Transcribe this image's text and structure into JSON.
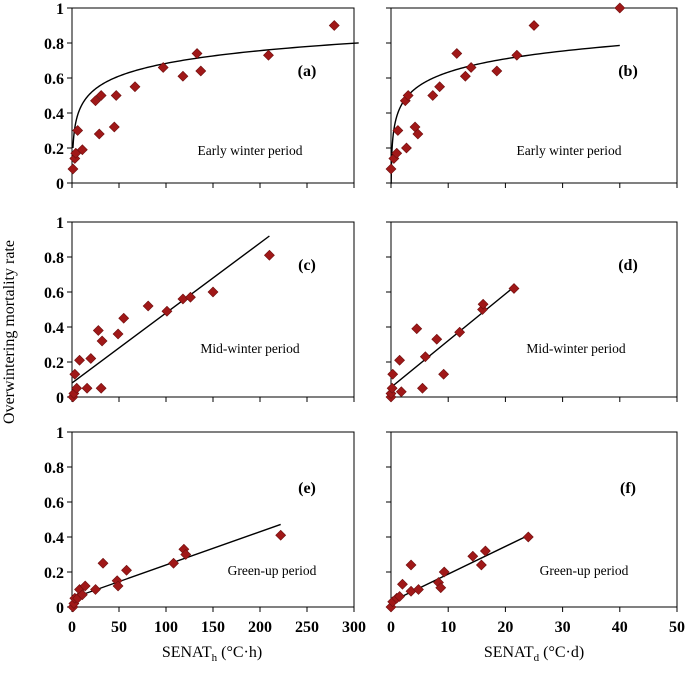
{
  "figure": {
    "ylabel": "Overwintering mortality rate",
    "xlabel_left": {
      "main": "SENAT",
      "sub": "h",
      "unit": " (°C·h)"
    },
    "xlabel_right": {
      "main": "SENAT",
      "sub": "d",
      "unit": " (°C·d)"
    },
    "marker_color": "#a01818",
    "line_color": "#000000"
  },
  "chart_data": [
    {
      "type": "scatter",
      "panel": "(a)",
      "period": "Early winter period",
      "xlim": [
        0,
        300
      ],
      "ylim": [
        0,
        1
      ],
      "xticks": [
        0,
        50,
        100,
        150,
        200,
        250,
        300
      ],
      "yticks": [
        0,
        0.2,
        0.4,
        0.6,
        0.8,
        1
      ],
      "ytick_labels": [
        "0",
        "0.2",
        "0.4",
        "0.6",
        "0.8",
        "1"
      ],
      "show_xtick_labels": false,
      "points": [
        [
          1,
          0.08
        ],
        [
          3,
          0.14
        ],
        [
          4,
          0.17
        ],
        [
          6,
          0.3
        ],
        [
          11,
          0.19
        ],
        [
          25,
          0.47
        ],
        [
          29,
          0.28
        ],
        [
          31,
          0.5
        ],
        [
          45,
          0.32
        ],
        [
          47,
          0.5
        ],
        [
          67,
          0.55
        ],
        [
          97,
          0.66
        ],
        [
          118,
          0.61
        ],
        [
          133,
          0.74
        ],
        [
          137,
          0.64
        ],
        [
          209,
          0.73
        ],
        [
          279,
          0.9
        ]
      ],
      "fit": {
        "model": "log",
        "a": 0.2,
        "b": 0.105,
        "x_range": [
          1,
          305
        ]
      }
    },
    {
      "type": "scatter",
      "panel": "(b)",
      "period": "Early winter period",
      "xlim": [
        0,
        50
      ],
      "ylim": [
        0,
        1
      ],
      "xticks": [
        0,
        10,
        20,
        30,
        40,
        50
      ],
      "yticks": [
        0,
        0.2,
        0.4,
        0.6,
        0.8,
        1
      ],
      "show_xtick_labels": false,
      "show_ytick_labels": false,
      "points": [
        [
          0,
          0.08
        ],
        [
          0.5,
          0.14
        ],
        [
          1,
          0.17
        ],
        [
          1.2,
          0.3
        ],
        [
          2.5,
          0.47
        ],
        [
          2.7,
          0.2
        ],
        [
          3,
          0.5
        ],
        [
          4.2,
          0.32
        ],
        [
          4.7,
          0.28
        ],
        [
          7.3,
          0.5
        ],
        [
          8.5,
          0.55
        ],
        [
          11.5,
          0.74
        ],
        [
          13,
          0.61
        ],
        [
          14,
          0.66
        ],
        [
          18.5,
          0.64
        ],
        [
          22,
          0.73
        ],
        [
          25,
          0.9
        ],
        [
          40,
          1.0
        ]
      ],
      "fit": {
        "model": "log",
        "a": 0.38,
        "b": 0.11,
        "x_range": [
          0.03,
          40
        ]
      }
    },
    {
      "type": "scatter",
      "panel": "(c)",
      "period": "Mid-winter period",
      "xlim": [
        0,
        300
      ],
      "ylim": [
        0,
        1
      ],
      "xticks": [
        0,
        50,
        100,
        150,
        200,
        250,
        300
      ],
      "yticks": [
        0,
        0.2,
        0.4,
        0.6,
        0.8,
        1
      ],
      "ytick_labels": [
        "0",
        "0.2",
        "0.4",
        "0.6",
        "0.8",
        "1"
      ],
      "show_xtick_labels": false,
      "points": [
        [
          1,
          0.0
        ],
        [
          2,
          0.02
        ],
        [
          3,
          0.13
        ],
        [
          5,
          0.05
        ],
        [
          8,
          0.21
        ],
        [
          16,
          0.05
        ],
        [
          20,
          0.22
        ],
        [
          28,
          0.38
        ],
        [
          31,
          0.05
        ],
        [
          32,
          0.32
        ],
        [
          49,
          0.36
        ],
        [
          55,
          0.45
        ],
        [
          81,
          0.52
        ],
        [
          101,
          0.49
        ],
        [
          118,
          0.56
        ],
        [
          126,
          0.57
        ],
        [
          150,
          0.6
        ],
        [
          210,
          0.81
        ]
      ],
      "fit": {
        "model": "linear",
        "slope": 0.004,
        "intercept": 0.08,
        "x_range": [
          0,
          210
        ]
      }
    },
    {
      "type": "scatter",
      "panel": "(d)",
      "period": "Mid-winter period",
      "xlim": [
        0,
        50
      ],
      "ylim": [
        0,
        1
      ],
      "xticks": [
        0,
        10,
        20,
        30,
        40,
        50
      ],
      "yticks": [
        0,
        0.2,
        0.4,
        0.6,
        0.8,
        1
      ],
      "show_xtick_labels": false,
      "show_ytick_labels": false,
      "points": [
        [
          0,
          0.0
        ],
        [
          0,
          0.02
        ],
        [
          0.2,
          0.05
        ],
        [
          0.3,
          0.13
        ],
        [
          1.5,
          0.21
        ],
        [
          1.8,
          0.03
        ],
        [
          4.5,
          0.39
        ],
        [
          5.5,
          0.05
        ],
        [
          6,
          0.23
        ],
        [
          8,
          0.33
        ],
        [
          9.2,
          0.13
        ],
        [
          12,
          0.37
        ],
        [
          16,
          0.5
        ],
        [
          16.1,
          0.53
        ],
        [
          21.5,
          0.62
        ]
      ],
      "fit": {
        "model": "linear",
        "slope": 0.0267,
        "intercept": 0.055,
        "x_range": [
          0,
          21.5
        ]
      }
    },
    {
      "type": "scatter",
      "panel": "(e)",
      "period": "Green-up period",
      "xlim": [
        0,
        300
      ],
      "ylim": [
        0,
        1
      ],
      "xticks": [
        0,
        50,
        100,
        150,
        200,
        250,
        300
      ],
      "xtick_labels": [
        "0",
        "50",
        "100",
        "150",
        "200",
        "250",
        "300"
      ],
      "yticks": [
        0,
        0.2,
        0.4,
        0.6,
        0.8,
        1
      ],
      "ytick_labels": [
        "0",
        "0.2",
        "0.4",
        "0.6",
        "0.8",
        "1"
      ],
      "points": [
        [
          1,
          0.0
        ],
        [
          2,
          0.02
        ],
        [
          3,
          0.05
        ],
        [
          6,
          0.05
        ],
        [
          8,
          0.1
        ],
        [
          11,
          0.07
        ],
        [
          14,
          0.12
        ],
        [
          25,
          0.1
        ],
        [
          33,
          0.25
        ],
        [
          48,
          0.15
        ],
        [
          49,
          0.12
        ],
        [
          58,
          0.21
        ],
        [
          108,
          0.25
        ],
        [
          119,
          0.33
        ],
        [
          121,
          0.3
        ],
        [
          222,
          0.41
        ]
      ],
      "fit": {
        "model": "linear",
        "slope": 0.0019,
        "intercept": 0.05,
        "x_range": [
          0,
          222
        ]
      }
    },
    {
      "type": "scatter",
      "panel": "(f)",
      "period": "Green-up period",
      "xlim": [
        0,
        50
      ],
      "ylim": [
        0,
        1
      ],
      "xticks": [
        0,
        10,
        20,
        30,
        40,
        50
      ],
      "xtick_labels": [
        "0",
        "10",
        "20",
        "30",
        "40",
        "50"
      ],
      "yticks": [
        0,
        0.2,
        0.4,
        0.6,
        0.8,
        1
      ],
      "show_ytick_labels": false,
      "points": [
        [
          0,
          0.0
        ],
        [
          0.3,
          0.03
        ],
        [
          1,
          0.05
        ],
        [
          1.5,
          0.06
        ],
        [
          2,
          0.13
        ],
        [
          3.5,
          0.24
        ],
        [
          3.5,
          0.09
        ],
        [
          4.8,
          0.1
        ],
        [
          8.3,
          0.14
        ],
        [
          8.7,
          0.11
        ],
        [
          9.3,
          0.2
        ],
        [
          14.3,
          0.29
        ],
        [
          15.8,
          0.24
        ],
        [
          16.5,
          0.32
        ],
        [
          24,
          0.4
        ]
      ],
      "fit": {
        "model": "linear",
        "slope": 0.0158,
        "intercept": 0.03,
        "x_range": [
          0,
          24
        ]
      }
    }
  ]
}
